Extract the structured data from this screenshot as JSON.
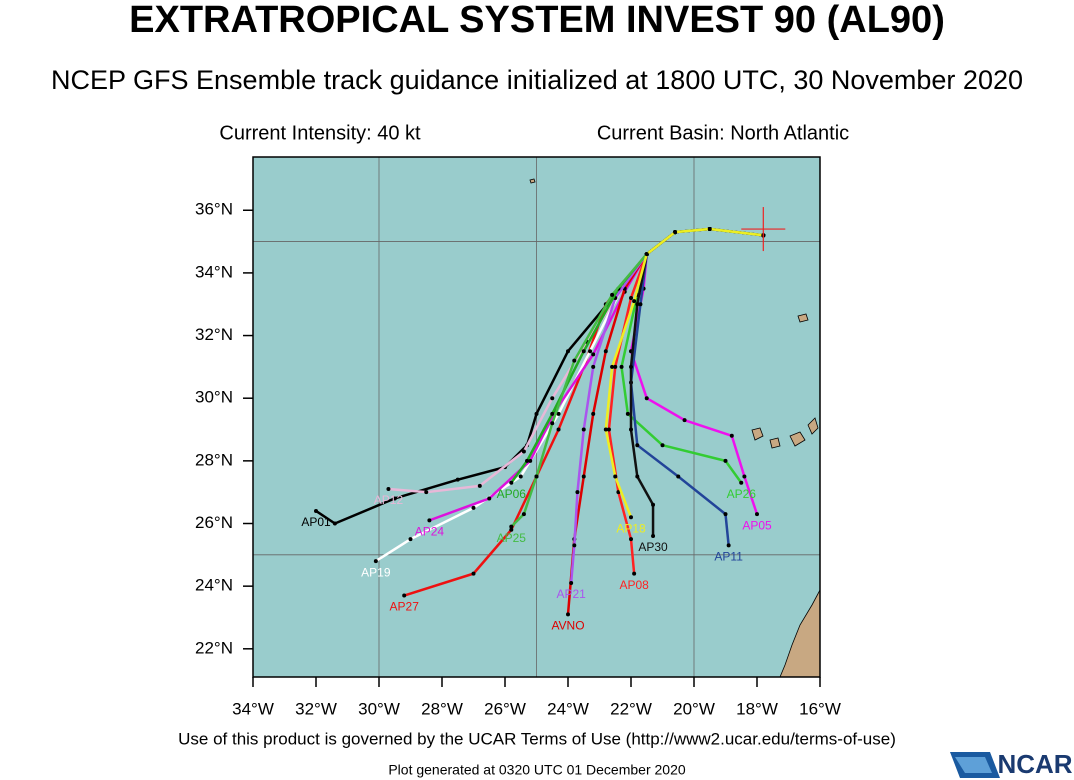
{
  "header": {
    "title": "EXTRATROPICAL SYSTEM INVEST 90 (AL90)",
    "subtitle": "NCEP GFS Ensemble track guidance initialized at 1800 UTC, 30 November 2020",
    "intensity": "Current Intensity: 40 kt",
    "basin": "Current Basin: North Atlantic"
  },
  "map": {
    "lonlim": [
      -34,
      -16
    ],
    "latlim": [
      21.1,
      37.7
    ],
    "lonticks": [
      {
        "value": -34,
        "label": "34°W"
      },
      {
        "value": -32,
        "label": "32°W"
      },
      {
        "value": -30,
        "label": "30°W"
      },
      {
        "value": -28,
        "label": "28°W"
      },
      {
        "value": -26,
        "label": "26°W"
      },
      {
        "value": -24,
        "label": "24°W"
      },
      {
        "value": -22,
        "label": "22°W"
      },
      {
        "value": -20,
        "label": "20°W"
      },
      {
        "value": -18,
        "label": "18°W"
      },
      {
        "value": -16,
        "label": "16°W"
      }
    ],
    "latticks": [
      {
        "value": 22,
        "label": "22°N"
      },
      {
        "value": 24,
        "label": "24°N"
      },
      {
        "value": 26,
        "label": "26°N"
      },
      {
        "value": 28,
        "label": "28°N"
      },
      {
        "value": 30,
        "label": "30°N"
      },
      {
        "value": 32,
        "label": "32°N"
      },
      {
        "value": 34,
        "label": "34°N"
      },
      {
        "value": 36,
        "label": "36°N"
      }
    ],
    "gridlons": [
      -30,
      -25,
      -20
    ],
    "gridlats": [
      25,
      35
    ],
    "current": {
      "lon": -17.8,
      "lat": 35.4
    },
    "tracks": [
      {
        "name": "AP01",
        "color": "#000000",
        "lons": [
          -17.8,
          -19.5,
          -20.6,
          -21.5,
          -22.5,
          -24,
          -25,
          -25.3,
          -26,
          -27.5,
          -29.5,
          -31.4,
          -32
        ],
        "lats": [
          35.2,
          35.4,
          35.3,
          34.6,
          33.3,
          31.5,
          29.5,
          28.5,
          27.8,
          27.4,
          26.8,
          26.0,
          26.4
        ]
      },
      {
        "name": "AP27",
        "color": "#ee1111",
        "lons": [
          -17.8,
          -19.5,
          -20.6,
          -21.5,
          -22.8,
          -23.5,
          -24.3,
          -25,
          -25.8,
          -27,
          -29.2
        ],
        "lats": [
          35.2,
          35.4,
          35.3,
          34.6,
          33,
          31,
          29,
          27.5,
          25.8,
          24.4,
          23.7
        ]
      },
      {
        "name": "AP19",
        "color": "#ffffff",
        "lons": [
          -17.8,
          -19.5,
          -20.6,
          -21.5,
          -22.3,
          -23.3,
          -24.3,
          -25.5,
          -27,
          -29,
          -30.1
        ],
        "lats": [
          35.2,
          35.4,
          35.3,
          34.6,
          33.5,
          31.5,
          29.5,
          27.5,
          26.5,
          25.5,
          24.8
        ]
      },
      {
        "name": "AP12",
        "color": "#e8b8d8",
        "lons": [
          -17.8,
          -19.5,
          -20.6,
          -21.5,
          -22.2,
          -23.4,
          -24.5,
          -25.4,
          -26.8,
          -28.5,
          -29.7
        ],
        "lats": [
          35.2,
          35.4,
          35.3,
          34.6,
          33.6,
          31.8,
          30,
          28.3,
          27.2,
          27.0,
          27.1
        ]
      },
      {
        "name": "AP24",
        "color": "#dd11dd",
        "lons": [
          -17.8,
          -19.5,
          -20.6,
          -21.5,
          -22.2,
          -23.2,
          -24.4,
          -25.2,
          -26.5,
          -28.4
        ],
        "lats": [
          35.2,
          35.4,
          35.3,
          34.6,
          33.4,
          31.4,
          29.6,
          28,
          26.8,
          26.1
        ]
      },
      {
        "name": "AP05",
        "color": "#ee11ee",
        "lons": [
          -17.8,
          -19.5,
          -20.6,
          -21.5,
          -21.6,
          -22,
          -21.5,
          -20.3,
          -18.8,
          -18.4,
          -18
        ],
        "lats": [
          35.2,
          35.4,
          35.3,
          34.6,
          33.5,
          31.5,
          30,
          29.3,
          28.8,
          27.5,
          26.3
        ]
      },
      {
        "name": "AP26",
        "color": "#33cc33",
        "lons": [
          -17.8,
          -19.5,
          -20.6,
          -21.5,
          -21.8,
          -22.3,
          -22.1,
          -21,
          -19,
          -18.5
        ],
        "lats": [
          35.2,
          35.4,
          35.3,
          34.6,
          33.3,
          31,
          29.5,
          28.5,
          28,
          27.3
        ]
      },
      {
        "name": "AP11",
        "color": "#224499",
        "lons": [
          -17.8,
          -19.5,
          -20.6,
          -21.5,
          -21.7,
          -22,
          -21.8,
          -20.5,
          -19,
          -18.9
        ],
        "lats": [
          35.2,
          35.4,
          35.3,
          34.6,
          33,
          30.5,
          28.5,
          27.5,
          26.3,
          25.3
        ]
      },
      {
        "name": "AVNO",
        "color": "#dd0000",
        "lons": [
          -17.8,
          -19.5,
          -20.6,
          -21.5,
          -22.2,
          -22.8,
          -23.2,
          -23.5,
          -23.8,
          -24
        ],
        "lats": [
          35.2,
          35.4,
          35.3,
          34.6,
          33.5,
          31.5,
          29.5,
          27.5,
          25.5,
          23.1
        ]
      },
      {
        "name": "AP08",
        "color": "#ff2222",
        "lons": [
          -17.8,
          -19.5,
          -20.6,
          -21.5,
          -22,
          -22.5,
          -22.7,
          -22.4,
          -22,
          -21.9
        ],
        "lats": [
          35.2,
          35.4,
          35.3,
          34.6,
          33.2,
          31,
          29,
          27,
          25.5,
          24.4
        ]
      },
      {
        "name": "AP30",
        "color": "#111111",
        "lons": [
          -17.8,
          -19.5,
          -20.6,
          -21.5,
          -21.8,
          -22,
          -22,
          -21.8,
          -21.3,
          -21.3
        ],
        "lats": [
          35.2,
          35.4,
          35.3,
          34.6,
          33,
          31,
          29,
          27.5,
          26.6,
          25.6
        ]
      },
      {
        "name": "AP21",
        "color": "#aa55ee",
        "lons": [
          -17.8,
          -19.5,
          -20.6,
          -21.5,
          -22.5,
          -23.2,
          -23.5,
          -23.7,
          -23.8,
          -23.9
        ],
        "lats": [
          35.2,
          35.4,
          35.3,
          34.6,
          33.2,
          31,
          29,
          27,
          25.3,
          24.1
        ]
      },
      {
        "name": "AP06",
        "color": "#22aa22",
        "lons": [
          -17.8,
          -19.5,
          -20.6,
          -21.5,
          -22.4,
          -23.5,
          -24.5,
          -25.3,
          -25.8
        ],
        "lats": [
          35.2,
          35.4,
          35.3,
          34.6,
          33.5,
          31.5,
          29.5,
          28,
          27.3
        ]
      },
      {
        "name": "AP25",
        "color": "#44bb44",
        "lons": [
          -17.8,
          -19.5,
          -20.6,
          -21.5,
          -22.6,
          -23.8,
          -24.5,
          -25,
          -25.4,
          -25.8
        ],
        "lats": [
          35.2,
          35.4,
          35.3,
          34.6,
          33.3,
          31.2,
          29.2,
          27.5,
          26.3,
          25.9
        ]
      },
      {
        "name": "AP18",
        "color": "#eeee22",
        "lons": [
          -17.8,
          -19.5,
          -20.6,
          -21.5,
          -21.9,
          -22.6,
          -22.8,
          -22.5,
          -22
        ],
        "lats": [
          35.2,
          35.4,
          35.3,
          34.6,
          33.1,
          31,
          29,
          27.5,
          26.2
        ]
      }
    ]
  },
  "footer": {
    "terms": "Use of this product is governed by the UCAR Terms of Use (http://www2.ucar.edu/terms-of-use)",
    "generated": "Plot generated at 0320 UTC   01 December 2020",
    "logo": "NCAR"
  }
}
